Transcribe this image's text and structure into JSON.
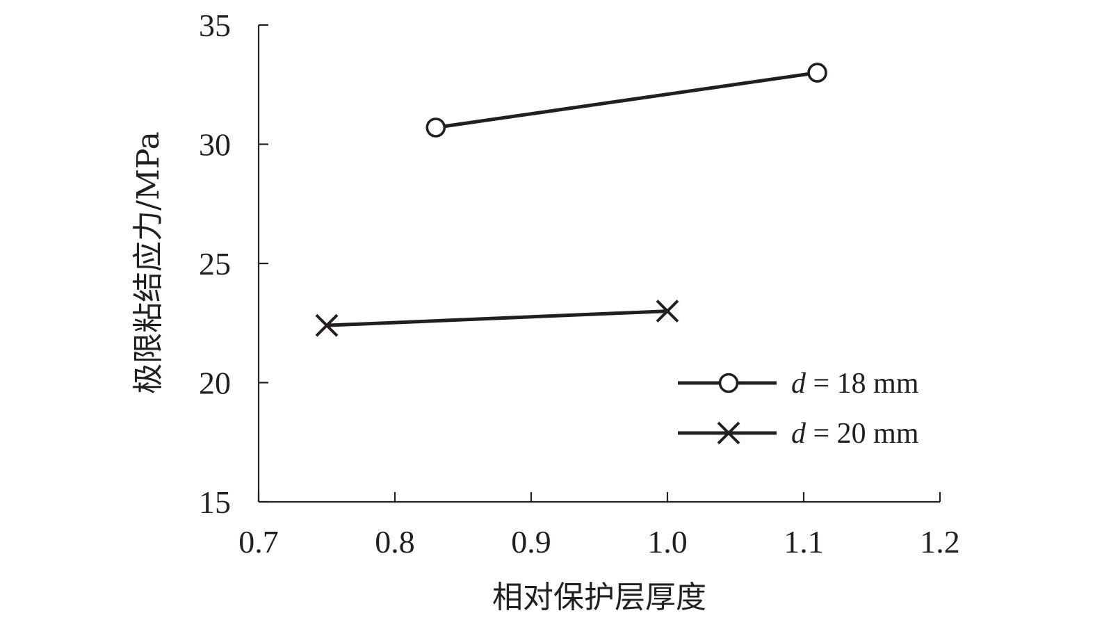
{
  "chart_data": {
    "type": "line",
    "title": "",
    "xlabel": "相对保护层厚度",
    "ylabel": "极限粘结应力/MPa",
    "xlim": [
      0.7,
      1.2
    ],
    "ylim": [
      15,
      35
    ],
    "xticks": [
      "0.7",
      "0.8",
      "0.9",
      "1.0",
      "1.1",
      "1.2"
    ],
    "yticks": [
      "15",
      "20",
      "25",
      "30",
      "35"
    ],
    "grid": false,
    "legend_position": "lower-right",
    "series": [
      {
        "name_var": "d",
        "name_rest": " = 18 mm",
        "marker": "circle",
        "color": "#231f20",
        "x": [
          0.83,
          1.11
        ],
        "y": [
          30.7,
          33.0
        ]
      },
      {
        "name_var": "d",
        "name_rest": " = 20 mm",
        "marker": "x",
        "color": "#231f20",
        "x": [
          0.75,
          1.0
        ],
        "y": [
          22.4,
          23.0
        ]
      }
    ]
  }
}
